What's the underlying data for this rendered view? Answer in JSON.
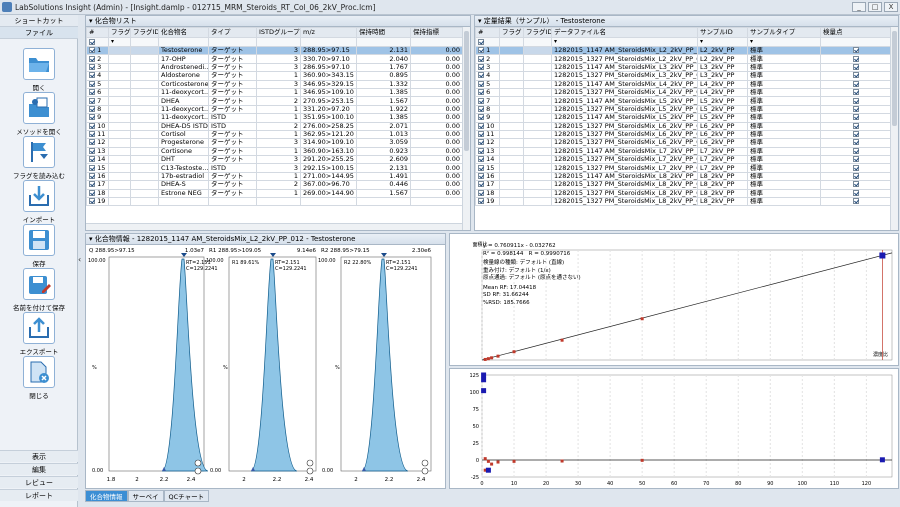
{
  "window": {
    "title": "LabSolutions Insight (Admin) - [Insight.damlp - 012715_MRM_Steroids_RT_Col_06_2kV_Proc.lcm]",
    "buttons": [
      "_",
      "□",
      "X"
    ]
  },
  "sidebar": {
    "header": "ショートカット",
    "section": "ファイル",
    "items": [
      {
        "label": "開く",
        "icon": "folder-open-icon"
      },
      {
        "label": "メソッドを開く",
        "icon": "method-open-icon"
      },
      {
        "label": "フラグを読み込む",
        "icon": "flag-import-icon"
      },
      {
        "label": "インポート",
        "icon": "import-icon"
      },
      {
        "label": "保存",
        "icon": "save-icon"
      },
      {
        "label": "名前を付けて保存",
        "icon": "save-as-icon"
      },
      {
        "label": "エクスポート",
        "icon": "export-icon"
      },
      {
        "label": "閉じる",
        "icon": "close-file-icon"
      }
    ],
    "bottom": [
      "表示",
      "編集",
      "レビュー",
      "レポート"
    ]
  },
  "compound_panel": {
    "title": "化合物リスト",
    "columns": [
      "#",
      "フラグ",
      "フラグID",
      "化合物名",
      "タイプ",
      "ISTDグループ",
      "m/z",
      "保持時間",
      "保持指標"
    ],
    "rows": [
      [
        "1",
        "Testosterone",
        "ターゲット",
        "3",
        "288.95>97.15",
        "2.131",
        "0.00"
      ],
      [
        "2",
        "17-OHP",
        "ターゲット",
        "3",
        "330.70>97.10",
        "2.040",
        "0.00"
      ],
      [
        "3",
        "Androstenedi...",
        "ターゲット",
        "3",
        "286.95>97.10",
        "1.767",
        "0.00"
      ],
      [
        "4",
        "Aldosterone",
        "ターゲット",
        "1",
        "360.90>343.15",
        "0.895",
        "0.00"
      ],
      [
        "5",
        "Corticosterone",
        "ターゲット",
        "3",
        "346.95>329.15",
        "1.332",
        "0.00"
      ],
      [
        "6",
        "11-deoxycort...",
        "ターゲット",
        "1",
        "346.95>109.10",
        "1.385",
        "0.00"
      ],
      [
        "7",
        "DHEA",
        "ターゲット",
        "2",
        "270.95>253.15",
        "1.567",
        "0.00"
      ],
      [
        "8",
        "11-deoxycort...",
        "ターゲット",
        "1",
        "331.20>97.20",
        "1.922",
        "0.00"
      ],
      [
        "9",
        "11-deoxycort...",
        "ISTD",
        "1",
        "351.95>100.10",
        "1.385",
        "0.00"
      ],
      [
        "10",
        "DHEA-D5 ISTD",
        "ISTD",
        "2",
        "276.00>258.25",
        "2.071",
        "0.00"
      ],
      [
        "11",
        "Cortisol",
        "ターゲット",
        "1",
        "362.95>121.20",
        "1.013",
        "0.00"
      ],
      [
        "12",
        "Progesterone",
        "ターゲット",
        "3",
        "314.90>109.10",
        "3.059",
        "0.00"
      ],
      [
        "13",
        "Cortisone",
        "ターゲット",
        "1",
        "360.90>163.10",
        "0.923",
        "0.00"
      ],
      [
        "14",
        "DHT",
        "ターゲット",
        "3",
        "291.20>255.25",
        "2.609",
        "0.00"
      ],
      [
        "15",
        "C13-Testoste...",
        "ISTD",
        "3",
        "292.15>100.15",
        "2.131",
        "0.00"
      ],
      [
        "16",
        "17b-estradiol",
        "ターゲット",
        "1",
        "271.00>144.95",
        "1.491",
        "0.00"
      ],
      [
        "17",
        "DHEA-S",
        "ターゲット",
        "2",
        "367.00>96.70",
        "0.446",
        "0.00"
      ],
      [
        "18",
        "Estrone NEG",
        "ターゲット",
        "1",
        "269.00>144.90",
        "1.567",
        "0.00"
      ],
      [
        "19",
        "",
        "",
        "",
        "",
        "",
        ""
      ]
    ]
  },
  "results_panel": {
    "title": "定量結果（サンプル） - Testosterone",
    "columns": [
      "#",
      "フラグ",
      "フラグID",
      "データファイル名",
      "サンプルID",
      "サンプルタイプ",
      "検量点"
    ],
    "rows": [
      [
        "1",
        "1282015_1147 AM_SteroidsMix_L2_2kV_PP_012",
        "L2_2kV_PP",
        "標準"
      ],
      [
        "2",
        "1282015_1327 PM_SteroidsMix_L2_2kV_PP_011",
        "L2_2kV_PP",
        "標準"
      ],
      [
        "3",
        "1282015_1147 AM_SteroidsMix_L3_2kV_PP_011",
        "L3_2kV_PP",
        "標準"
      ],
      [
        "4",
        "1282015_1327 PM_SteroidsMix_L3_2kV_PP_022",
        "L3_2kV_PP",
        "標準"
      ],
      [
        "5",
        "1282015_1147 AM_SteroidsMix_L4_2kV_PP_010",
        "L4_2kV_PP",
        "標準"
      ],
      [
        "6",
        "1282015_1327 PM_SteroidsMix_L4_2kV_PP_009",
        "L4_2kV_PP",
        "標準"
      ],
      [
        "7",
        "1282015_1147 AM_SteroidsMix_L5_2kV_PP_009",
        "L5_2kV_PP",
        "標準"
      ],
      [
        "8",
        "1282015_1327 PM_SteroidsMix_L5_2kV_PP_008",
        "L5_2kV_PP",
        "標準"
      ],
      [
        "9",
        "1282015_1147 AM_SteroidsMix_L5_2kV_PP_020",
        "L5_2kV_PP",
        "標準"
      ],
      [
        "10",
        "1282015_1327 PM_SteroidsMix_L6_2kV_PP_007",
        "L6_2kV_PP",
        "標準"
      ],
      [
        "11",
        "1282015_1327 PM_SteroidsMix_L6_2kV_PP_019",
        "L6_2kV_PP",
        "標準"
      ],
      [
        "12",
        "1282015_1327 PM_SteroidsMix_L6_2kV_PP_006",
        "L6_2kV_PP",
        "標準"
      ],
      [
        "13",
        "1282015_1147 AM_SteroidsMix_L7_2kV_PP_007",
        "L7_2kV_PP",
        "標準"
      ],
      [
        "14",
        "1282015_1327 PM_SteroidsMix_L7_2kV_PP_006",
        "L7_2kV_PP",
        "標準"
      ],
      [
        "15",
        "1282015_1327 PM_SteroidsMix_L7_2kV_PP_018",
        "L7_2kV_PP",
        "標準"
      ],
      [
        "16",
        "1282015_1147 AM_SteroidsMix_L8_2kV_PP_006",
        "L8_2kV_PP",
        "標準"
      ],
      [
        "17",
        "1282015_1327 PM_SteroidsMix_L8_2kV_PP_005",
        "L8_2kV_PP",
        "標準"
      ],
      [
        "18",
        "1282015_1327 PM_SteroidsMix_L8_2kV_PP_017",
        "L8_2kV_PP",
        "標準"
      ],
      [
        "19",
        "1282015_1327 PM_SteroidsMix_L8_2kV_PP_004",
        "L8_2kV_PP",
        "標準"
      ]
    ]
  },
  "compound_info": {
    "title": "化合物情報 - 1282015_1147 AM_SteroidsMix_L2_2kV_PP_012 - Testosterone",
    "chromatograms": [
      {
        "header_left": "Q 288.95>97.15",
        "header_right": "1.03e7",
        "rt": "RT=2.151",
        "c": "C=129.2241",
        "ratio": "",
        "ticks": [
          "1.8",
          "2",
          "2.2",
          "2.4"
        ]
      },
      {
        "header_left": "R1 288.95>109.05",
        "header_right": "9.14e6",
        "rt": "RT=2.151",
        "c": "C=129.2241",
        "ratio": "R1 89.61%",
        "ticks": [
          "2",
          "2.2",
          "2.4"
        ]
      },
      {
        "header_left": "R2 288.95>79.15",
        "header_right": "2.30e6",
        "rt": "RT=2.151",
        "c": "C=129.2241",
        "ratio": "R2 22.80%",
        "ticks": [
          "2",
          "2.2",
          "2.4"
        ]
      }
    ],
    "y_labels": [
      "100.00",
      "0.00"
    ],
    "y_unit": "%"
  },
  "calibration": {
    "equation": "y = 0.760911x - 0.032762",
    "r2": "R² = 0.998144",
    "r": "R = 0.9990716",
    "curve_type_label": "検量線の種類: デフォルト (直線)",
    "weight_label": "重み付け: デフォルト (1/x)",
    "zero_label": "原点通過: デフォルト (原点を通さない)",
    "mean_rf": "Mean RF: 17.04418",
    "sd_rf": "SD RF: 31.66244",
    "rsd": "%RSD: 185.7666",
    "y_axis_label": "面積比",
    "x_axis_label": "濃度比",
    "x_ticks": [
      "0",
      "10",
      "20",
      "30",
      "40",
      "50",
      "60",
      "70",
      "80",
      "90",
      "100",
      "110",
      "120"
    ],
    "y_ticks": [
      "100",
      "90",
      "80",
      "70",
      "60",
      "50",
      "40",
      "30",
      "20",
      "10",
      "0"
    ]
  },
  "chart_data": {
    "type": "scatter",
    "title": "",
    "xlabel": "濃度比",
    "ylabel": "面積比",
    "xlim": [
      0,
      128
    ],
    "ylim": [
      0,
      100
    ],
    "series": [
      {
        "values": [
          [
            1,
            0.5
          ],
          [
            2,
            1.2
          ],
          [
            3,
            2
          ],
          [
            5,
            3.5
          ],
          [
            10,
            7.5
          ],
          [
            25,
            18
          ],
          [
            50,
            37.5
          ],
          [
            125,
            95
          ]
        ]
      }
    ]
  },
  "residual_chart": {
    "type": "scatter",
    "x_ticks": [
      "0",
      "10",
      "20",
      "30",
      "40",
      "50",
      "60",
      "70",
      "80",
      "90",
      "100",
      "110",
      "120"
    ],
    "y_ticks": [
      "125",
      "100",
      "75",
      "50",
      "25",
      "0",
      "-25"
    ],
    "ylim": [
      -25,
      125
    ]
  },
  "tabs": [
    "化合物情報",
    "サーベイ",
    "QCチャート"
  ]
}
